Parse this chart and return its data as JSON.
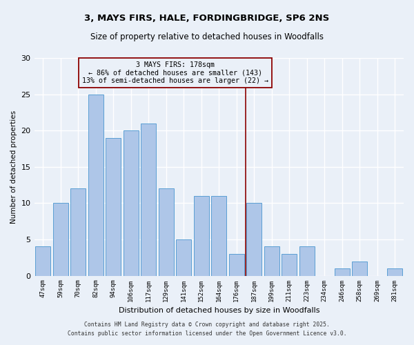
{
  "title_line1": "3, MAYS FIRS, HALE, FORDINGBRIDGE, SP6 2NS",
  "title_line2": "Size of property relative to detached houses in Woodfalls",
  "xlabel": "Distribution of detached houses by size in Woodfalls",
  "ylabel": "Number of detached properties",
  "bar_labels": [
    "47sqm",
    "59sqm",
    "70sqm",
    "82sqm",
    "94sqm",
    "106sqm",
    "117sqm",
    "129sqm",
    "141sqm",
    "152sqm",
    "164sqm",
    "176sqm",
    "187sqm",
    "199sqm",
    "211sqm",
    "223sqm",
    "234sqm",
    "246sqm",
    "258sqm",
    "269sqm",
    "281sqm"
  ],
  "bar_values": [
    4,
    10,
    12,
    25,
    19,
    20,
    21,
    12,
    5,
    11,
    11,
    3,
    10,
    4,
    3,
    4,
    0,
    1,
    2,
    0,
    1
  ],
  "bar_color": "#aec6e8",
  "bar_edgecolor": "#5a9fd4",
  "background_color": "#eaf0f8",
  "grid_color": "#ffffff",
  "vline_color": "#8b0000",
  "annotation_text": "3 MAYS FIRS: 178sqm\n← 86% of detached houses are smaller (143)\n13% of semi-detached houses are larger (22) →",
  "annotation_box_color": "#8b0000",
  "ylim": [
    0,
    30
  ],
  "yticks": [
    0,
    5,
    10,
    15,
    20,
    25,
    30
  ],
  "footer_line1": "Contains HM Land Registry data © Crown copyright and database right 2025.",
  "footer_line2": "Contains public sector information licensed under the Open Government Licence v3.0."
}
